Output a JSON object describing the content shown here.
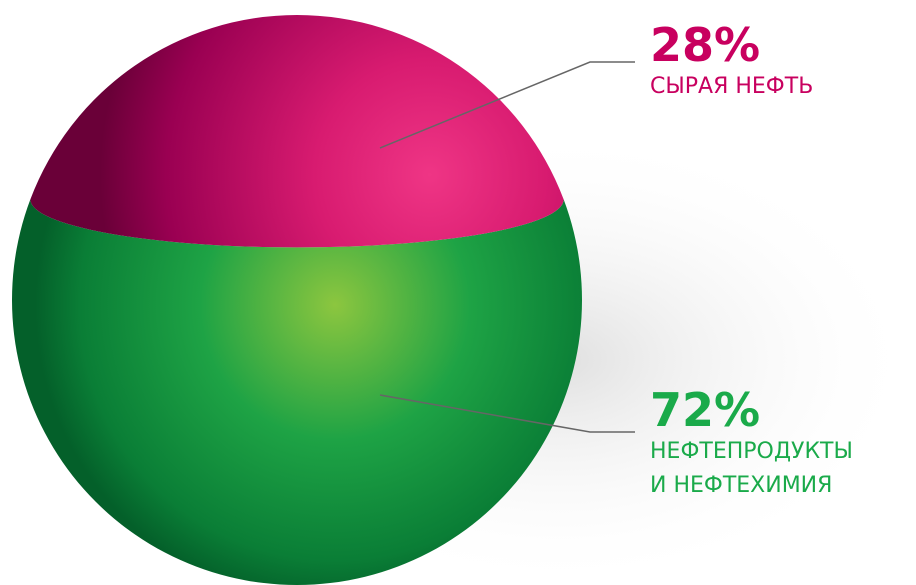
{
  "chart_data": {
    "type": "pie",
    "categories": [
      "СЫРАЯ НЕФТЬ",
      "НЕФТЕПРОДУКТЫ\nИ НЕФТЕХИМИЯ"
    ],
    "values": [
      28,
      72
    ],
    "value_labels": [
      "28%",
      "72%"
    ],
    "colors": [
      "#d0156e",
      "#13a046"
    ]
  }
}
